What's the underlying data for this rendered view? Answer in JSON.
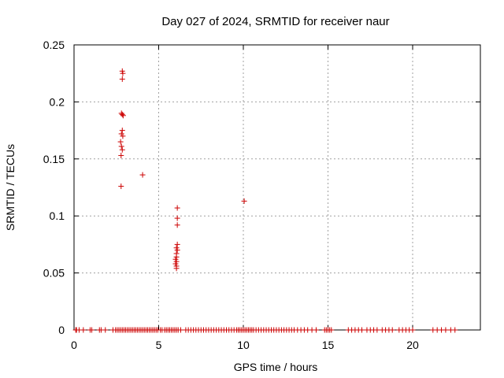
{
  "chart_data": {
    "type": "scatter",
    "title": "Day 027 of 2024, SRMTID for receiver naur",
    "xlabel": "GPS time / hours",
    "ylabel": "SRMTID / TECUs",
    "xlim": [
      0,
      24
    ],
    "ylim": [
      0,
      0.25
    ],
    "xticks": [
      0,
      5,
      10,
      15,
      20
    ],
    "xtick_labels": [
      "0",
      "5",
      "10",
      "15",
      "20"
    ],
    "yticks": [
      0,
      0.05,
      0.1,
      0.15,
      0.2,
      0.25
    ],
    "ytick_labels": [
      "0",
      "0.05",
      "0.1",
      "0.15",
      "0.2",
      "0.25"
    ],
    "grid": true,
    "legend": "none",
    "marker": "plus",
    "color": "#cc0000",
    "points": [
      [
        2.85,
        0.227
      ],
      [
        2.88,
        0.225
      ],
      [
        2.85,
        0.22
      ],
      [
        2.8,
        0.19
      ],
      [
        2.85,
        0.189
      ],
      [
        2.9,
        0.188
      ],
      [
        2.85,
        0.175
      ],
      [
        2.8,
        0.172
      ],
      [
        2.88,
        0.17
      ],
      [
        2.75,
        0.165
      ],
      [
        2.8,
        0.161
      ],
      [
        2.85,
        0.158
      ],
      [
        2.78,
        0.153
      ],
      [
        2.78,
        0.126
      ],
      [
        4.05,
        0.136
      ],
      [
        6.1,
        0.107
      ],
      [
        6.1,
        0.098
      ],
      [
        6.1,
        0.092
      ],
      [
        6.1,
        0.075
      ],
      [
        6.05,
        0.072
      ],
      [
        6.1,
        0.07
      ],
      [
        6.05,
        0.067
      ],
      [
        6.05,
        0.064
      ],
      [
        6.0,
        0.062
      ],
      [
        6.05,
        0.06
      ],
      [
        6.0,
        0.058
      ],
      [
        6.05,
        0.056
      ],
      [
        6.05,
        0.054
      ],
      [
        10.05,
        0.113
      ]
    ],
    "zero_points_x": [
      0.1,
      0.15,
      0.3,
      0.55,
      0.95,
      1.05,
      1.5,
      1.6,
      1.85,
      2.3,
      2.45,
      2.55,
      2.65,
      2.75,
      2.85,
      2.95,
      3.05,
      3.15,
      3.25,
      3.35,
      3.45,
      3.55,
      3.65,
      3.75,
      3.85,
      3.95,
      4.05,
      4.15,
      4.25,
      4.35,
      4.45,
      4.55,
      4.65,
      4.75,
      4.85,
      4.95,
      5.1,
      5.2,
      5.35,
      5.45,
      5.55,
      5.65,
      5.75,
      5.85,
      5.95,
      6.05,
      6.15,
      6.3,
      6.6,
      6.75,
      6.9,
      7.05,
      7.2,
      7.35,
      7.5,
      7.65,
      7.8,
      7.95,
      8.1,
      8.25,
      8.4,
      8.55,
      8.7,
      8.85,
      9.0,
      9.15,
      9.3,
      9.45,
      9.6,
      9.7,
      9.8,
      9.9,
      10.0,
      10.1,
      10.2,
      10.3,
      10.4,
      10.5,
      10.6,
      10.75,
      10.9,
      11.05,
      11.2,
      11.35,
      11.5,
      11.65,
      11.8,
      11.95,
      12.1,
      12.25,
      12.4,
      12.55,
      12.7,
      12.85,
      13.0,
      13.2,
      13.4,
      13.6,
      13.8,
      14.05,
      14.3,
      14.8,
      14.9,
      15.0,
      15.1,
      15.2,
      16.2,
      16.4,
      16.6,
      16.8,
      17.0,
      17.3,
      17.5,
      17.7,
      17.9,
      18.2,
      18.4,
      18.6,
      18.8,
      19.2,
      19.4,
      19.6,
      19.8,
      20.0,
      21.2,
      21.45,
      21.7,
      21.95,
      22.25,
      22.5
    ]
  }
}
